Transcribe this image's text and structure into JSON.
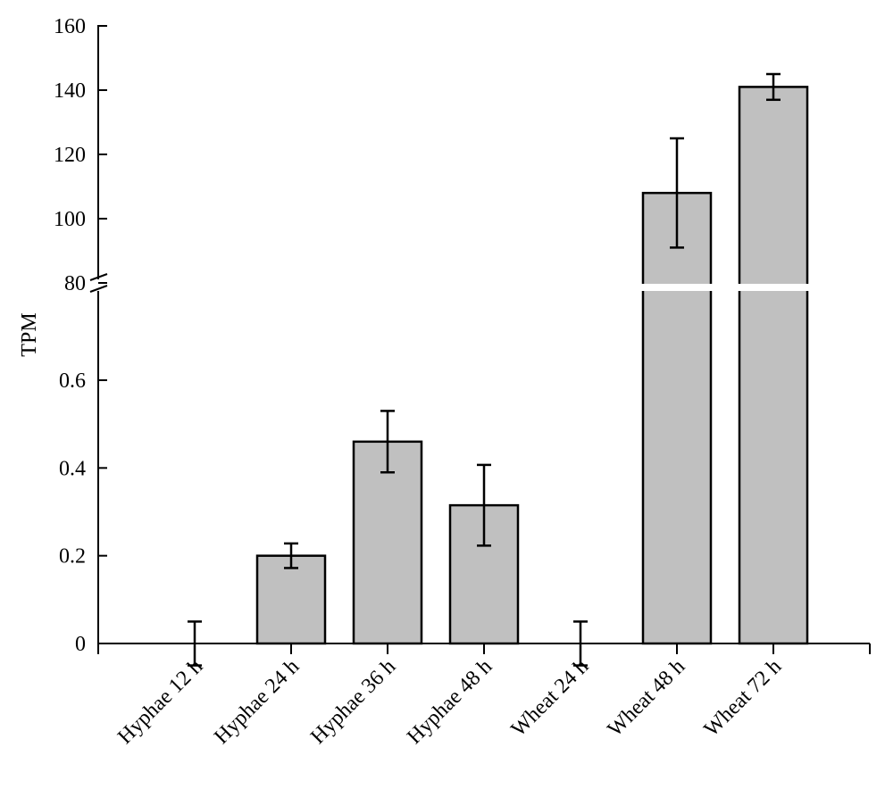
{
  "chart_data": {
    "type": "bar",
    "ylabel": "TPM",
    "xlabel": "",
    "title": "",
    "categories": [
      "Hyphae 12 h",
      "Hyphae 24 h",
      "Hyphae 36 h",
      "Hyphae 48 h",
      "Wheat 24 h",
      "Wheat 48 h",
      "Wheat 72 h"
    ],
    "values": [
      0,
      0.2,
      0.46,
      0.315,
      0,
      108,
      141
    ],
    "errors": [
      0.05,
      0.028,
      0.07,
      0.092,
      0.05,
      17,
      4
    ],
    "y_axis_break": {
      "lower_range": [
        0,
        0.8
      ],
      "upper_range": [
        80,
        160
      ]
    },
    "yticks_lower": [
      "0",
      "0.2",
      "0.4",
      "0.6"
    ],
    "yticks_upper": [
      "80",
      "100",
      "120",
      "140",
      "160"
    ],
    "grid": false,
    "legend": "none",
    "colors": {
      "bar_fill": "#c0c0c0",
      "bar_stroke": "#000000",
      "axis": "#000000"
    }
  }
}
